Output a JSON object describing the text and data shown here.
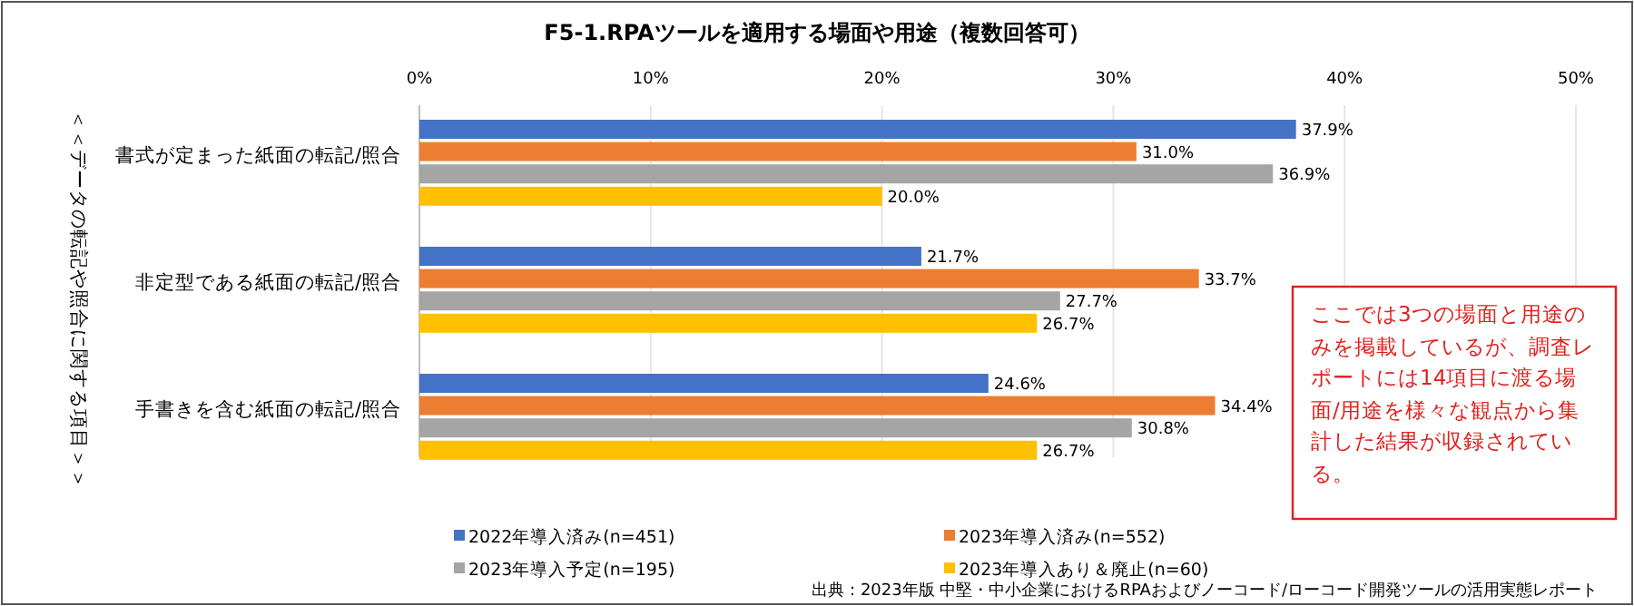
{
  "chart_data": {
    "type": "bar",
    "orientation": "horizontal",
    "title": "F5-1.RPAツールを適用する場面や用途（複数回答可）",
    "ylabel": "＜＜データの転記や照合に関する項目＞＞",
    "categories": [
      "書式が定まった紙面の転記/照合",
      "非定型である紙面の転記/照合",
      "手書きを含む紙面の転記/照合"
    ],
    "series": [
      {
        "name": "2022年導入済み(n=451)",
        "color": "#4472c4",
        "values": [
          37.9,
          21.7,
          24.6
        ],
        "value_labels": [
          "37.9%",
          "21.7%",
          "24.6%"
        ]
      },
      {
        "name": "2023年導入済み(n=552)",
        "color": "#ed7d31",
        "values": [
          31.0,
          33.7,
          34.4
        ],
        "value_labels": [
          "31.0%",
          "33.7%",
          "34.4%"
        ]
      },
      {
        "name": "2023年導入予定(n=195)",
        "color": "#a5a5a5",
        "values": [
          36.9,
          27.7,
          30.8
        ],
        "value_labels": [
          "36.9%",
          "27.7%",
          "30.8%"
        ]
      },
      {
        "name": "2023年導入あり＆廃止(n=60)",
        "color": "#ffc000",
        "values": [
          20.0,
          26.7,
          26.7
        ],
        "value_labels": [
          "20.0%",
          "26.7%",
          "26.7%"
        ]
      }
    ],
    "xlim": [
      0,
      50
    ],
    "xticks": [
      {
        "value": 0,
        "label": "0%"
      },
      {
        "value": 10,
        "label": "10%"
      },
      {
        "value": 20,
        "label": "20%"
      },
      {
        "value": 30,
        "label": "30%"
      },
      {
        "value": 40,
        "label": "40%"
      },
      {
        "value": 50,
        "label": "50%"
      }
    ],
    "grid": "x",
    "legend": "bottom",
    "annotations": [
      "ここでは3つの場面と用途のみを掲載しているが、調査レポートには14項目に渡る場面/用途を様々な観点から集計した結果が収録されている。",
      "出典：2023年版 中堅・中小企業におけるRPAおよびノーコード/ローコード開発ツールの活用実態レポート"
    ]
  }
}
